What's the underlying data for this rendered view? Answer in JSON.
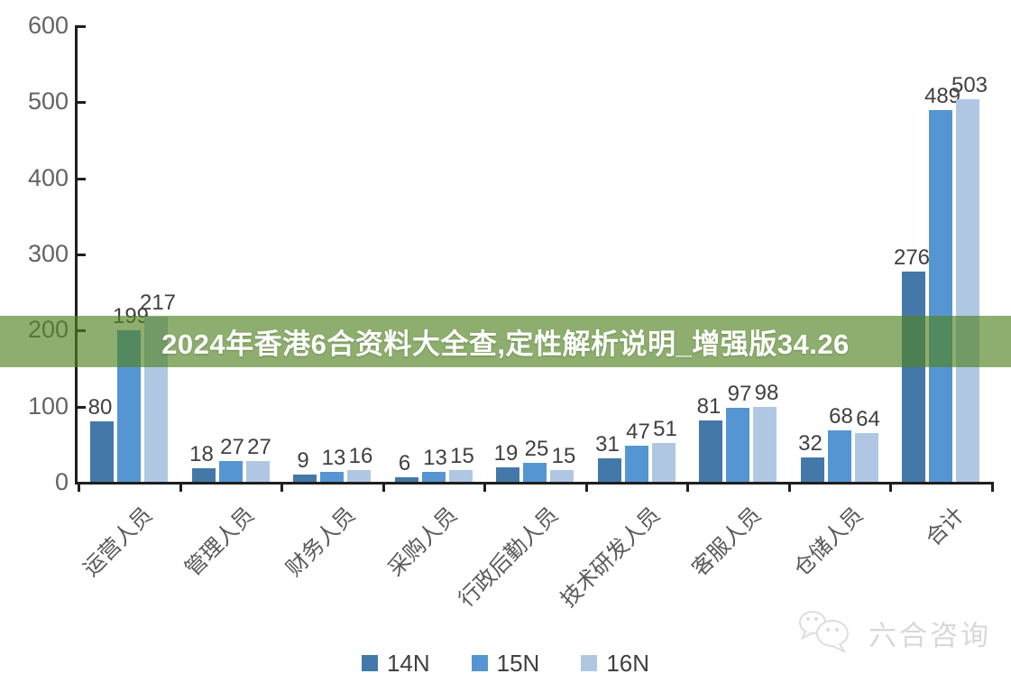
{
  "banner": {
    "text": "2024年香港6合资料大全查,定性解析说明_增强版34.26",
    "bg_color": "#528222"
  },
  "watermark": {
    "brand": "六合咨询",
    "icon": "wechat-chat-bubbles-icon",
    "color": "#c2c2c2"
  },
  "legend": {
    "items": [
      {
        "label": "14N",
        "color": "#4478a8"
      },
      {
        "label": "15N",
        "color": "#5596d2"
      },
      {
        "label": "16N",
        "color": "#b0c7e4"
      }
    ],
    "position": "bottom"
  },
  "chart_data": {
    "type": "bar",
    "title": "",
    "xlabel": "",
    "ylabel": "",
    "categories": [
      "运营人员",
      "管理人员",
      "财务人员",
      "采购人员",
      "行政后勤人员",
      "技术研发人员",
      "客服人员",
      "仓储人员",
      "合计"
    ],
    "series": [
      {
        "name": "14N",
        "color": "#4478a8",
        "values": [
          80,
          18,
          9,
          6,
          19,
          31,
          81,
          32,
          276
        ]
      },
      {
        "name": "15N",
        "color": "#5596d2",
        "values": [
          199,
          27,
          13,
          13,
          25,
          47,
          97,
          68,
          489
        ]
      },
      {
        "name": "16N",
        "color": "#b0c7e4",
        "values": [
          217,
          27,
          16,
          15,
          15,
          51,
          98,
          64,
          503
        ]
      }
    ],
    "ylim": [
      0,
      600
    ],
    "yticks": [
      0,
      100,
      200,
      300,
      400,
      500,
      600
    ],
    "grid": false,
    "legend_position": "bottom",
    "value_labels_shown": true,
    "axis_color": "#1f1f1f",
    "label_color": "#404040",
    "tick_label_color": "#595959"
  }
}
